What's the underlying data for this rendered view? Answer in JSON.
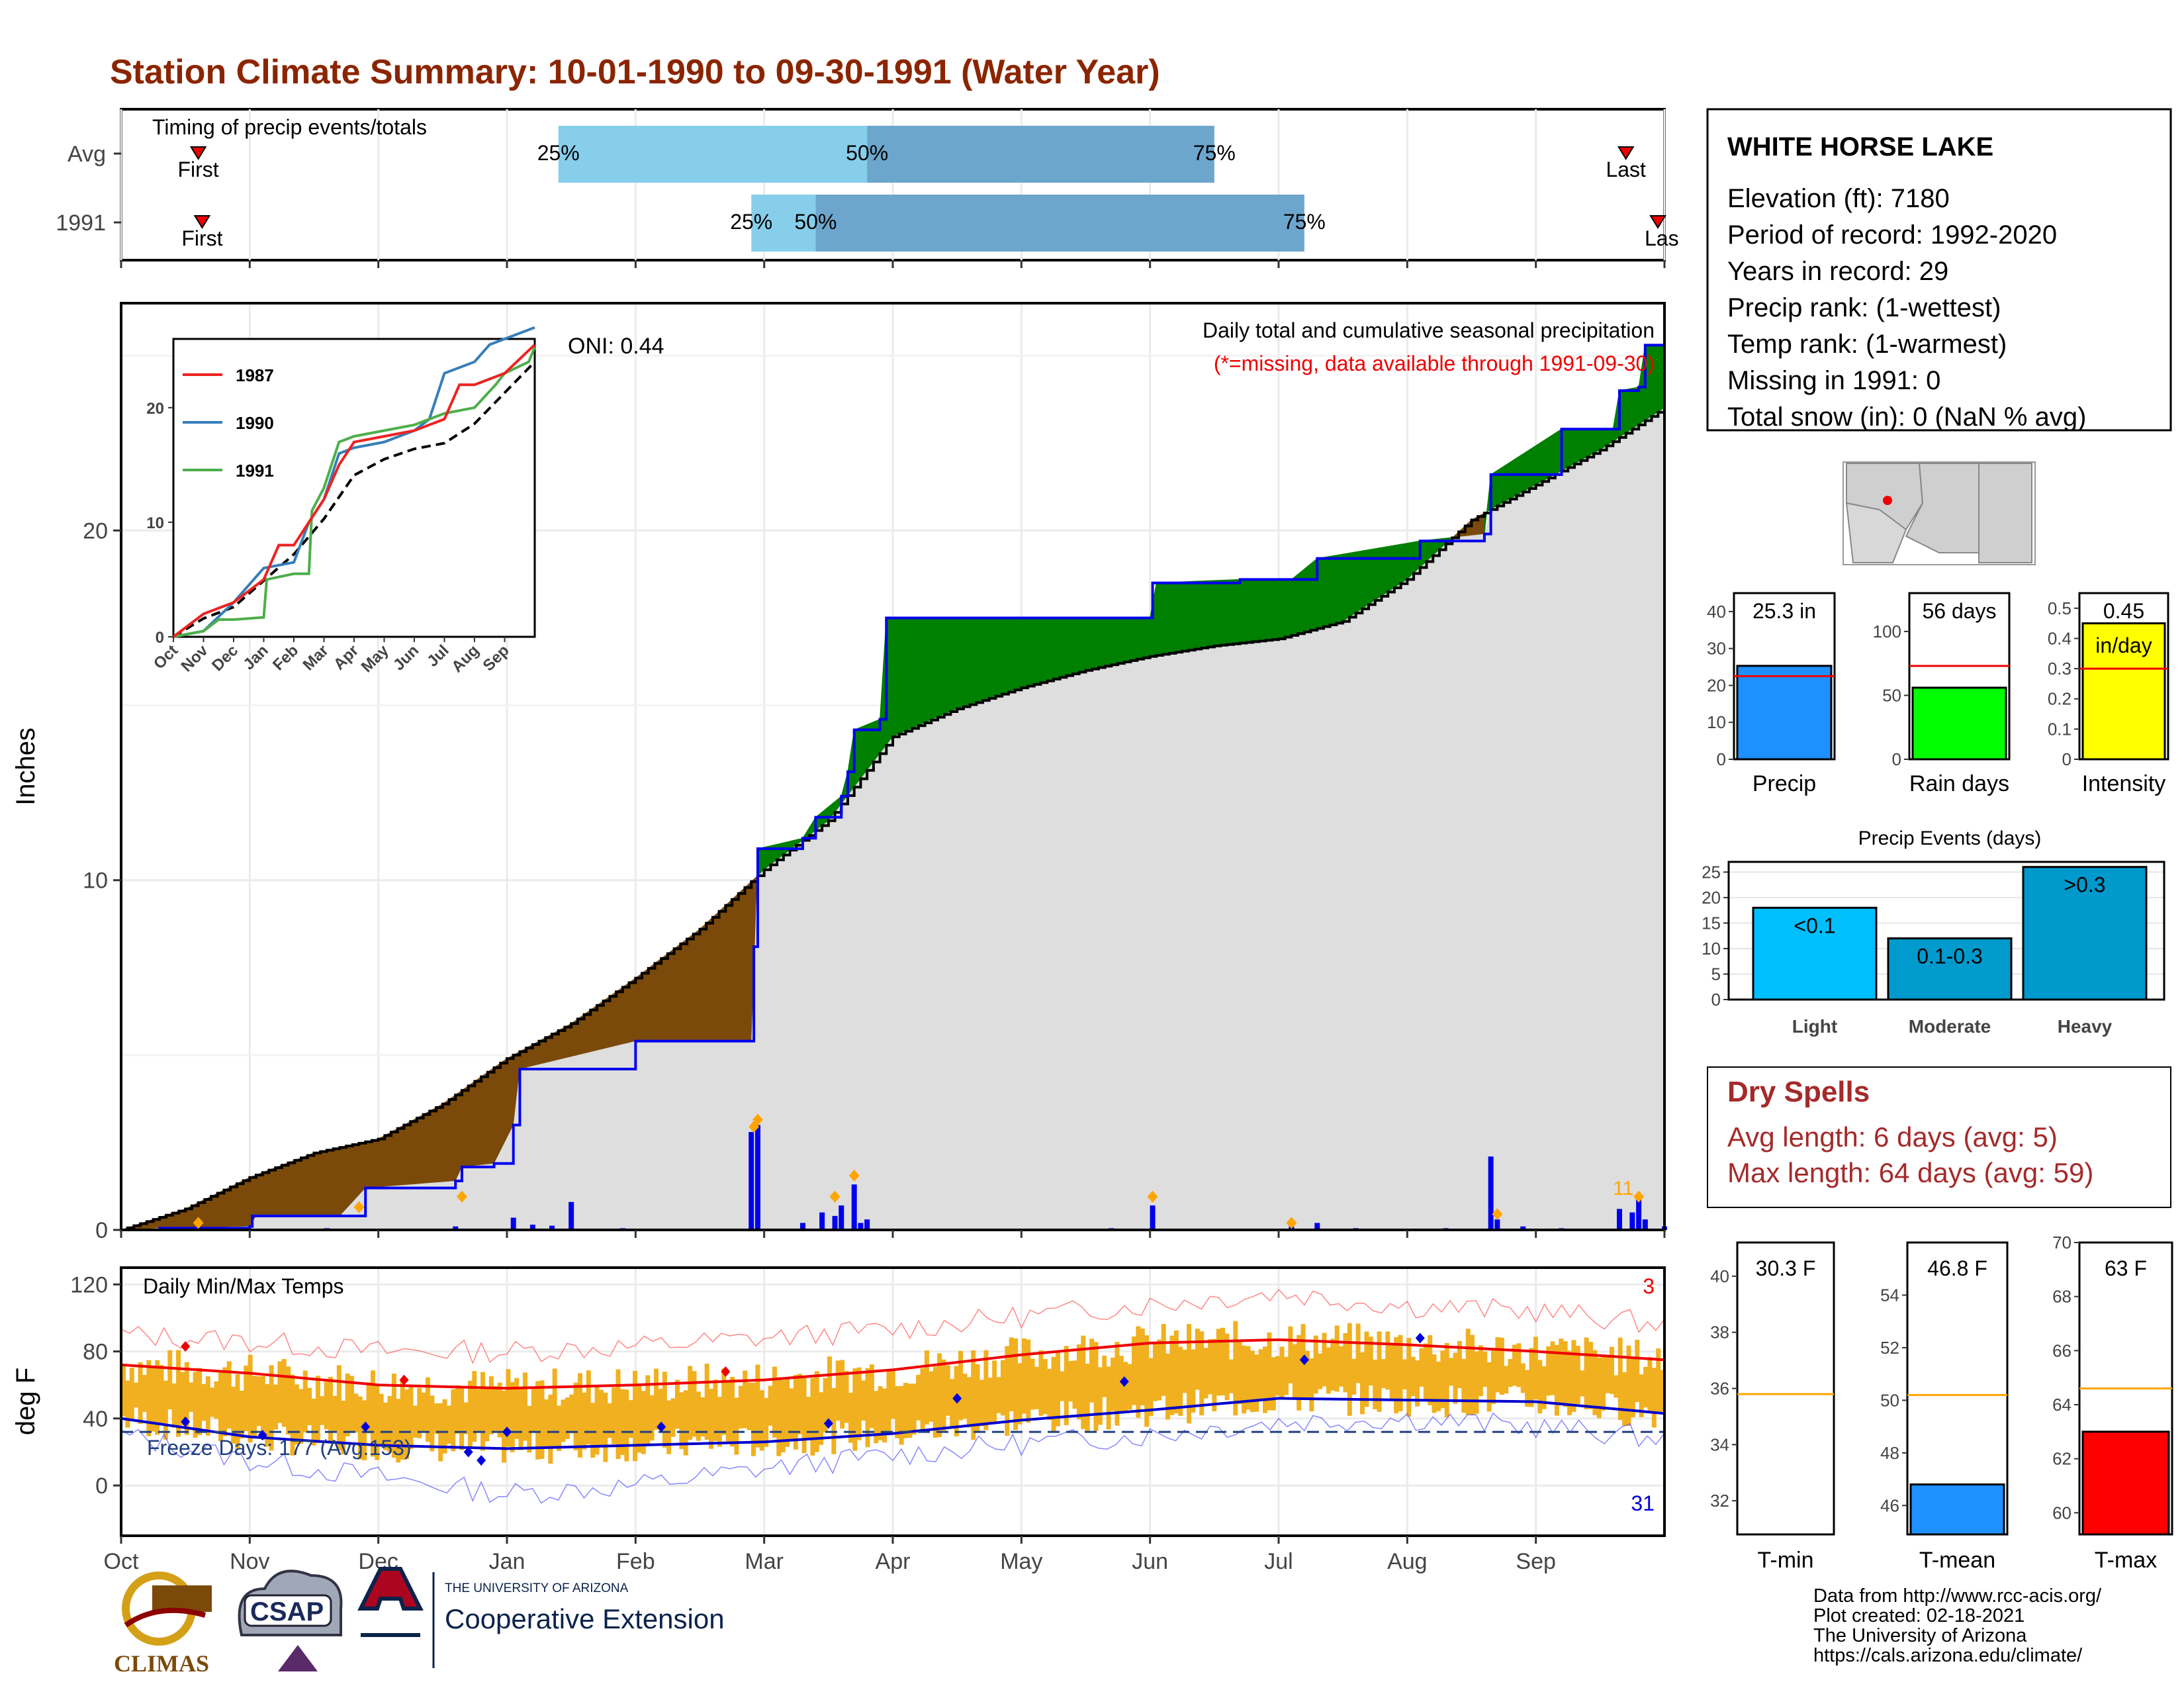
{
  "title": "Station Climate Summary: 10-01-1990 to 09-30-1991 (Water Year)",
  "colors": {
    "title": "#8B2500",
    "brown": "#7B4A0A",
    "green": "#008000",
    "blue": "#0000EE",
    "orange": "#F0B020",
    "red": "#EE0000",
    "lightblue": "#87CEEB",
    "midblue": "#6CA6CD",
    "fillgray": "#DEDEDE"
  },
  "timing": {
    "title": "Timing of precip events/totals",
    "rows": [
      {
        "label": "Avg",
        "first_month": 0.6,
        "last_month": 11.7,
        "q25": 3.4,
        "q50": 5.8,
        "q75": 8.5
      },
      {
        "label": "1991",
        "first_month": 0.63,
        "last_month": 12.0,
        "q25": 4.9,
        "q50": 5.4,
        "q75": 9.2
      }
    ],
    "pct_labels": [
      "25%",
      "50%",
      "75%"
    ],
    "first_label": "First",
    "last_label": "Last",
    "last_label_clipped": "Las"
  },
  "precip": {
    "ylabel": "Inches",
    "yticks": [
      0,
      10,
      20
    ],
    "ymax": 26.5,
    "oni": "ONI: 0.44",
    "note1": "Daily total and cumulative seasonal precipitation",
    "note2": "(*=missing, data available through 1991-09-30)",
    "month_labels": [
      "Oct",
      "Nov",
      "Dec",
      "Jan",
      "Feb",
      "Mar",
      "Apr",
      "May",
      "Jun",
      "Jul",
      "Aug",
      "Sep"
    ],
    "record_label": "11",
    "avg_cum": [
      [
        0,
        0
      ],
      [
        0.5,
        0.6
      ],
      [
        1,
        1.5
      ],
      [
        1.5,
        2.2
      ],
      [
        2,
        2.6
      ],
      [
        2.5,
        3.6
      ],
      [
        3,
        4.9
      ],
      [
        3.5,
        5.9
      ],
      [
        4,
        7.2
      ],
      [
        4.5,
        8.6
      ],
      [
        5,
        10.3
      ],
      [
        5.5,
        11.7
      ],
      [
        6,
        14.1
      ],
      [
        6.5,
        14.9
      ],
      [
        7,
        15.5
      ],
      [
        7.5,
        16
      ],
      [
        8,
        16.4
      ],
      [
        8.5,
        16.7
      ],
      [
        9,
        16.9
      ],
      [
        9.5,
        17.4
      ],
      [
        10,
        18.6
      ],
      [
        10.5,
        20.3
      ],
      [
        11,
        21.3
      ],
      [
        11.5,
        22.3
      ],
      [
        12,
        23.5
      ]
    ],
    "year_cum": [
      [
        0,
        0
      ],
      [
        0.3,
        0.05
      ],
      [
        1,
        0.1
      ],
      [
        1.02,
        0.4
      ],
      [
        1.7,
        0.4
      ],
      [
        1.9,
        1.2
      ],
      [
        2.6,
        1.4
      ],
      [
        2.65,
        1.8
      ],
      [
        2.9,
        1.9
      ],
      [
        3.05,
        3.0
      ],
      [
        3.1,
        4.6
      ],
      [
        4,
        5.4
      ],
      [
        4.5,
        5.4
      ],
      [
        4.9,
        5.4
      ],
      [
        4.92,
        8.1
      ],
      [
        4.95,
        10.9
      ],
      [
        5.3,
        11.2
      ],
      [
        5.4,
        11.8
      ],
      [
        5.6,
        12.4
      ],
      [
        5.65,
        13.1
      ],
      [
        5.7,
        14.3
      ],
      [
        5.9,
        14.6
      ],
      [
        5.95,
        17.5
      ],
      [
        8.0,
        17.5
      ],
      [
        8.02,
        18.5
      ],
      [
        8.7,
        18.6
      ],
      [
        9.1,
        18.6
      ],
      [
        9.3,
        19.2
      ],
      [
        10.1,
        19.7
      ],
      [
        10.6,
        19.9
      ],
      [
        10.65,
        21.6
      ],
      [
        11.2,
        22.9
      ],
      [
        11.6,
        22.9
      ],
      [
        11.65,
        24.0
      ],
      [
        11.8,
        24.1
      ],
      [
        11.85,
        25.3
      ],
      [
        12,
        25.3
      ]
    ],
    "daily": [
      [
        1.6,
        0.05
      ],
      [
        2.6,
        0.1
      ],
      [
        3.05,
        0.35
      ],
      [
        3.2,
        0.15
      ],
      [
        3.35,
        0.12
      ],
      [
        3.5,
        0.8
      ],
      [
        3.9,
        0.05
      ],
      [
        4.9,
        2.8
      ],
      [
        4.95,
        3.0
      ],
      [
        5.3,
        0.2
      ],
      [
        5.45,
        0.5
      ],
      [
        5.55,
        0.4
      ],
      [
        5.6,
        0.7
      ],
      [
        5.7,
        1.3
      ],
      [
        5.75,
        0.2
      ],
      [
        5.8,
        0.3
      ],
      [
        7.7,
        0.05
      ],
      [
        8.02,
        0.7
      ],
      [
        9.1,
        0.1
      ],
      [
        9.3,
        0.2
      ],
      [
        9.6,
        0.05
      ],
      [
        10.3,
        0.05
      ],
      [
        10.65,
        2.1
      ],
      [
        10.7,
        0.3
      ],
      [
        10.9,
        0.1
      ],
      [
        11.2,
        0.05
      ],
      [
        11.65,
        0.6
      ],
      [
        11.75,
        0.5
      ],
      [
        11.8,
        1.0
      ],
      [
        11.85,
        0.3
      ],
      [
        12,
        0.1
      ]
    ],
    "record_pts": [
      [
        0.6,
        0.05
      ],
      [
        1.85,
        0.5
      ],
      [
        2.65,
        0.8
      ],
      [
        4.92,
        2.8
      ],
      [
        4.95,
        3.0
      ],
      [
        5.55,
        0.8
      ],
      [
        5.7,
        1.4
      ],
      [
        8.02,
        0.8
      ],
      [
        9.1,
        0.05
      ],
      [
        10.7,
        0.3
      ],
      [
        11.8,
        0.8
      ]
    ]
  },
  "inset": {
    "series": [
      {
        "name": "1987",
        "color": "#EE2222"
      },
      {
        "name": "1990",
        "color": "#377EB8"
      },
      {
        "name": "1991",
        "color": "#4DAF4A"
      }
    ],
    "yticks": [
      0,
      10,
      20
    ],
    "ymax": 26,
    "month_labels": [
      "Oct",
      "Nov",
      "Dec",
      "Jan",
      "Feb",
      "Mar",
      "Apr",
      "May",
      "Jun",
      "Jul",
      "Aug",
      "Sep"
    ],
    "avg": [
      [
        0,
        0
      ],
      [
        1,
        1.6
      ],
      [
        2,
        2.6
      ],
      [
        3,
        4.9
      ],
      [
        4,
        7.2
      ],
      [
        5,
        10.3
      ],
      [
        6,
        14.1
      ],
      [
        7,
        15.5
      ],
      [
        8,
        16.4
      ],
      [
        9,
        16.9
      ],
      [
        10,
        18.6
      ],
      [
        11,
        21.3
      ],
      [
        12,
        24
      ]
    ],
    "y1987": [
      [
        0,
        0
      ],
      [
        1,
        2
      ],
      [
        2,
        3
      ],
      [
        3,
        5
      ],
      [
        3.5,
        8
      ],
      [
        4,
        8
      ],
      [
        4.5,
        10
      ],
      [
        5,
        12
      ],
      [
        5.5,
        15
      ],
      [
        6,
        17
      ],
      [
        7,
        17.5
      ],
      [
        8,
        18
      ],
      [
        9,
        19
      ],
      [
        9.5,
        22
      ],
      [
        10,
        22
      ],
      [
        11,
        23
      ],
      [
        12,
        25.5
      ]
    ],
    "y1990": [
      [
        0,
        0
      ],
      [
        1,
        0.5
      ],
      [
        2,
        3
      ],
      [
        3,
        6
      ],
      [
        4,
        6.5
      ],
      [
        4.5,
        10
      ],
      [
        5,
        12
      ],
      [
        5.5,
        16
      ],
      [
        6,
        16.5
      ],
      [
        7,
        17
      ],
      [
        8,
        18
      ],
      [
        8.5,
        19
      ],
      [
        9,
        23
      ],
      [
        10,
        24
      ],
      [
        10.5,
        25.5
      ],
      [
        12,
        27
      ]
    ],
    "y1991": [
      [
        0,
        0
      ],
      [
        1,
        0.5
      ],
      [
        1.5,
        1.5
      ],
      [
        2,
        1.5
      ],
      [
        3,
        1.7
      ],
      [
        3.1,
        5
      ],
      [
        4,
        5.5
      ],
      [
        4.5,
        5.5
      ],
      [
        4.6,
        11
      ],
      [
        5,
        13
      ],
      [
        5.5,
        17
      ],
      [
        6,
        17.5
      ],
      [
        8,
        18.5
      ],
      [
        9,
        19.5
      ],
      [
        10,
        20
      ],
      [
        10.7,
        22
      ],
      [
        11,
        23
      ],
      [
        11.8,
        24
      ],
      [
        12,
        25.3
      ]
    ]
  },
  "temps": {
    "ylabel": "deg F",
    "title": "Daily Min/Max Temps",
    "yticks": [
      0,
      40,
      80,
      120
    ],
    "freeze": "Freeze Days: 177 (Avg:153)",
    "freeze_line": 32,
    "high_count": "3",
    "low_count": "31",
    "avg_max": [
      [
        0,
        72
      ],
      [
        1,
        67
      ],
      [
        2,
        60
      ],
      [
        3,
        58
      ],
      [
        4,
        60
      ],
      [
        5,
        63
      ],
      [
        6,
        69
      ],
      [
        7,
        78
      ],
      [
        8,
        85
      ],
      [
        9,
        87
      ],
      [
        10,
        84
      ],
      [
        11,
        80
      ],
      [
        12,
        75
      ]
    ],
    "avg_min": [
      [
        0,
        40
      ],
      [
        1,
        29
      ],
      [
        2,
        24
      ],
      [
        3,
        22
      ],
      [
        4,
        24
      ],
      [
        5,
        26
      ],
      [
        6,
        31
      ],
      [
        7,
        39
      ],
      [
        8,
        45
      ],
      [
        9,
        52
      ],
      [
        10,
        51
      ],
      [
        11,
        50
      ],
      [
        12,
        43
      ]
    ],
    "rec_max": [
      [
        0,
        90
      ],
      [
        1,
        86
      ],
      [
        2,
        80
      ],
      [
        3,
        80
      ],
      [
        4,
        83
      ],
      [
        5,
        88
      ],
      [
        6,
        93
      ],
      [
        7,
        101
      ],
      [
        8,
        108
      ],
      [
        9,
        115
      ],
      [
        10,
        107
      ],
      [
        11,
        104
      ],
      [
        12,
        96
      ]
    ],
    "rec_min": [
      [
        0,
        30
      ],
      [
        1,
        15
      ],
      [
        2,
        5
      ],
      [
        3,
        -5
      ],
      [
        4,
        0
      ],
      [
        5,
        10
      ],
      [
        6,
        18
      ],
      [
        7,
        25
      ],
      [
        8,
        30
      ],
      [
        9,
        38
      ],
      [
        10,
        40
      ],
      [
        11,
        35
      ],
      [
        12,
        28
      ]
    ]
  },
  "station": {
    "name": "WHITE HORSE LAKE",
    "lines": [
      "Elevation (ft): 7180",
      "Period of record: 1992-2020",
      "Years in record: 29",
      "Precip rank:  (1-wettest)",
      "Temp rank:  (1-warmest)",
      "Missing in 1991: 0",
      "Total snow (in): 0 (NaN % avg)"
    ]
  },
  "mini_bars": [
    {
      "label": "Precip",
      "value": 25.3,
      "avg": 22.5,
      "text": "25.3 in",
      "ymax": 45,
      "ticks": [
        0,
        10,
        20,
        30,
        40
      ],
      "color": "#1E90FF"
    },
    {
      "label": "Rain days",
      "value": 56,
      "avg": 73,
      "text": "56 days",
      "ymax": 130,
      "ticks": [
        0,
        50,
        100
      ],
      "color": "#00FF00"
    },
    {
      "label": "Intensity",
      "value": 0.45,
      "avg": 0.3,
      "text": "0.45",
      "text2": "in/day",
      "ymax": 0.55,
      "ticks": [
        0.0,
        0.1,
        0.2,
        0.3,
        0.4,
        0.5
      ],
      "color": "#FFFF00"
    }
  ],
  "events": {
    "title": "Precip Events (days)",
    "ticks": [
      0,
      5,
      10,
      15,
      20,
      25
    ],
    "ymax": 27,
    "bars": [
      {
        "cat": "Light",
        "label": "<0.1",
        "value": 18,
        "color": "#00BFFF"
      },
      {
        "cat": "Moderate",
        "label": "0.1-0.3",
        "value": 12,
        "color": "#009ACD"
      },
      {
        "cat": "Heavy",
        "label": ">0.3",
        "value": 26,
        "color": "#0099CC"
      }
    ]
  },
  "dry": {
    "title": "Dry Spells",
    "avg": "Avg length: 6 days (avg: 5)",
    "max": "Max length: 64 days (avg: 59)"
  },
  "temp_bars": [
    {
      "label": "T-min",
      "value": 30.3,
      "avg": 35.8,
      "text": "30.3 F",
      "ymin": 30.8,
      "ymax": 41.2,
      "ticks": [
        32,
        34,
        36,
        38,
        40
      ],
      "color": "#FFFFFF"
    },
    {
      "label": "T-mean",
      "value": 46.8,
      "avg": 50.2,
      "text": "46.8 F",
      "ymin": 44.9,
      "ymax": 56,
      "ticks": [
        46,
        48,
        50,
        52,
        54
      ],
      "color": "#1E90FF"
    },
    {
      "label": "T-max",
      "value": 63,
      "avg": 64.6,
      "text": "63 F",
      "ymin": 59.2,
      "ymax": 70,
      "ticks": [
        60,
        62,
        64,
        66,
        68,
        70
      ],
      "color": "#FF0000"
    }
  ],
  "logos": {
    "climas": "CLIMAS",
    "csap": "CSAP",
    "ua_small": "THE UNIVERSITY OF ARIZONA",
    "ua_big": "Cooperative Extension"
  },
  "credits": [
    "Data from http://www.rcc-acis.org/",
    "Plot created: 02-18-2021",
    "The University of Arizona",
    "https://cals.arizona.edu/climate/"
  ]
}
